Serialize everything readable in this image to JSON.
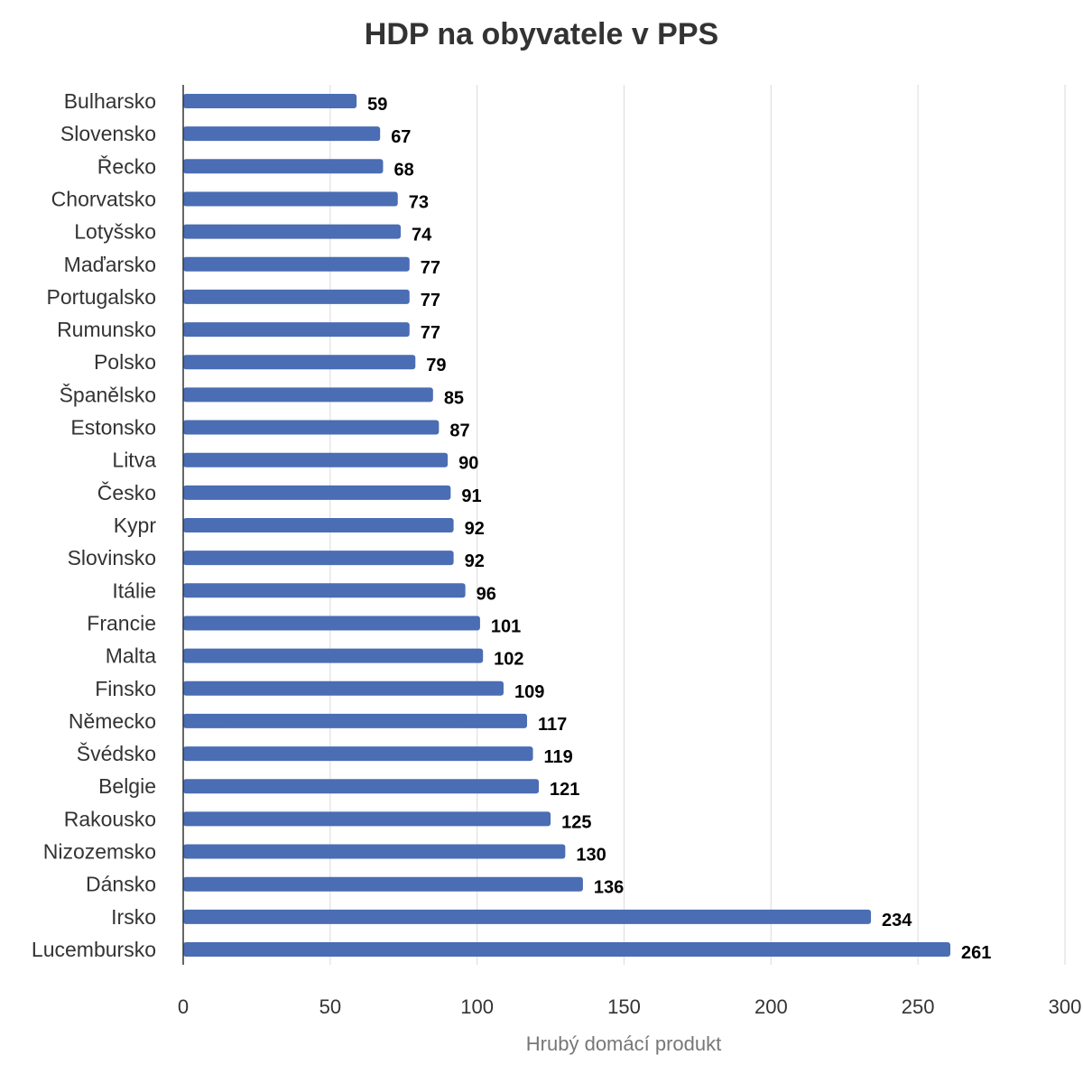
{
  "chart_data": {
    "type": "bar",
    "orientation": "horizontal",
    "title": "HDP na obyvatele v PPS",
    "xlabel": "Hrubý domácí produkt",
    "ylabel": "",
    "xlim": [
      0,
      300
    ],
    "xticks": [
      "0",
      "50",
      "100",
      "150",
      "200",
      "250",
      "300"
    ],
    "grid": true,
    "legend": "none",
    "bar_color": "#4a6db4",
    "categories": [
      "Bulharsko",
      "Slovensko",
      "Řecko",
      "Chorvatsko",
      "Lotyšsko",
      "Maďarsko",
      "Portugalsko",
      "Rumunsko",
      "Polsko",
      "Španělsko",
      "Estonsko",
      "Litva",
      "Česko",
      "Kypr",
      "Slovinsko",
      "Itálie",
      "Francie",
      "Malta",
      "Finsko",
      "Německo",
      "Švédsko",
      "Belgie",
      "Rakousko",
      "Nizozemsko",
      "Dánsko",
      "Irsko",
      "Lucembursko"
    ],
    "values": [
      59,
      67,
      68,
      73,
      74,
      77,
      77,
      77,
      79,
      85,
      87,
      90,
      91,
      92,
      92,
      96,
      101,
      102,
      109,
      117,
      119,
      121,
      125,
      130,
      136,
      234,
      261
    ]
  }
}
